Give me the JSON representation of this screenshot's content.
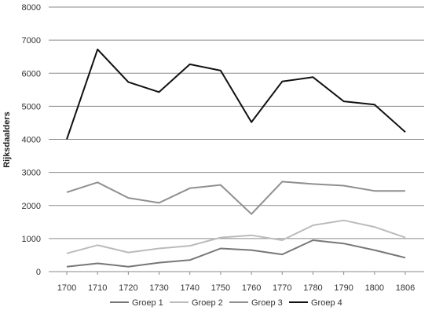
{
  "chart_data": {
    "type": "line",
    "title": "",
    "xlabel": "",
    "ylabel": "Rijksdaalders",
    "x": [
      "1700",
      "1710",
      "1720",
      "1730",
      "1740",
      "1750",
      "1760",
      "1770",
      "1780",
      "1790",
      "1800",
      "1806"
    ],
    "ylim": [
      0,
      8000
    ],
    "yticks": [
      0,
      1000,
      2000,
      3000,
      4000,
      5000,
      6000,
      7000,
      8000
    ],
    "grid": true,
    "legend_position": "bottom",
    "series": [
      {
        "name": "Groep 1",
        "color": "#777777",
        "values": [
          150,
          250,
          150,
          270,
          350,
          700,
          650,
          520,
          950,
          850,
          650,
          420
        ]
      },
      {
        "name": "Groep 2",
        "color": "#bbbbbb",
        "values": [
          550,
          800,
          580,
          700,
          780,
          1030,
          1100,
          950,
          1400,
          1550,
          1350,
          1030
        ]
      },
      {
        "name": "Groep 3",
        "color": "#8f8f8f",
        "values": [
          2400,
          2700,
          2230,
          2080,
          2520,
          2620,
          1740,
          2720,
          2650,
          2600,
          2440,
          2440
        ]
      },
      {
        "name": "Groep 4",
        "color": "#111111",
        "values": [
          4000,
          6720,
          5730,
          5430,
          6270,
          6080,
          4520,
          5750,
          5880,
          5150,
          5050,
          4220
        ]
      }
    ]
  }
}
